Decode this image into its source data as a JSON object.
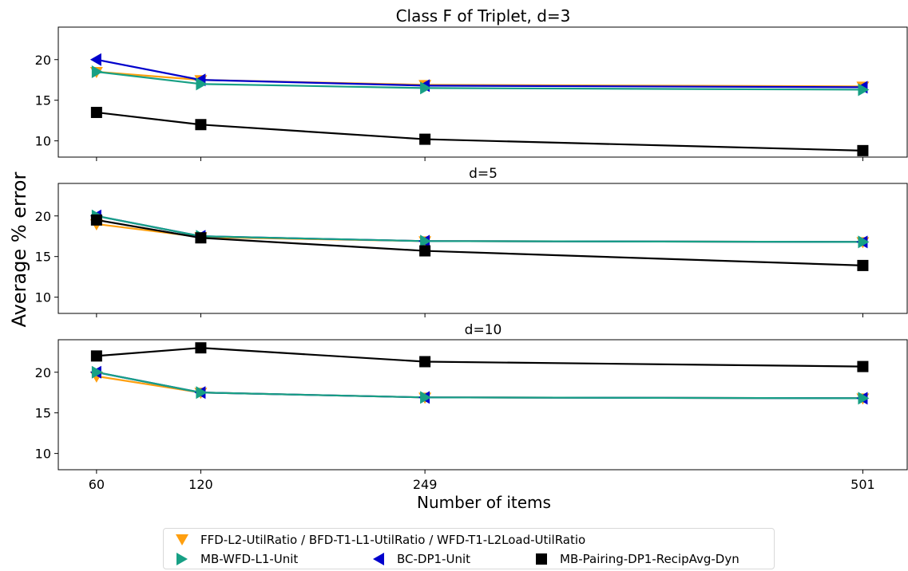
{
  "chart_data": {
    "type": "line",
    "shared_ylabel": "Average % error",
    "shared_xlabel": "Number of items",
    "x": [
      60,
      120,
      249,
      501
    ],
    "x_tick_labels": [
      "60",
      "120",
      "249",
      "501"
    ],
    "ylim": [
      8,
      24
    ],
    "y_ticks": [
      10,
      15,
      20
    ],
    "grid": false,
    "legend_position": "bottom-center, below plots",
    "legend": [
      {
        "label": "FFD-L2-UtilRatio / BFD-T1-L1-UtilRatio / WFD-T1-L2Load-UtilRatio",
        "marker": "triangle-down",
        "color": "#ff9f0f"
      },
      {
        "label": "MB-WFD-L1-Unit",
        "marker": "triangle-right",
        "color": "#17a085"
      },
      {
        "label": "BC-DP1-Unit",
        "marker": "triangle-left",
        "color": "#0000cc"
      },
      {
        "label": "MB-Pairing-DP1-RecipAvg-Dyn",
        "marker": "square",
        "color": "#000000"
      }
    ],
    "panels": [
      {
        "title": "Class F of Triplet, d=3",
        "series": [
          {
            "name": "FFD-L2-UtilRatio / BFD-T1-L1-UtilRatio / WFD-T1-L2Load-UtilRatio",
            "color": "#ff9f0f",
            "marker": "triangle-down",
            "values": [
              18.5,
              17.5,
              16.9,
              16.7
            ]
          },
          {
            "name": "BC-DP1-Unit",
            "color": "#0000cc",
            "marker": "triangle-left",
            "values": [
              20.0,
              17.5,
              16.8,
              16.6
            ]
          },
          {
            "name": "MB-WFD-L1-Unit",
            "color": "#17a085",
            "marker": "triangle-right",
            "values": [
              18.5,
              17.0,
              16.5,
              16.3
            ]
          },
          {
            "name": "MB-Pairing-DP1-RecipAvg-Dyn",
            "color": "#000000",
            "marker": "square",
            "values": [
              13.5,
              12.0,
              10.2,
              8.8
            ]
          }
        ]
      },
      {
        "title": "d=5",
        "series": [
          {
            "name": "FFD-L2-UtilRatio / BFD-T1-L1-UtilRatio / WFD-T1-L2Load-UtilRatio",
            "color": "#ff9f0f",
            "marker": "triangle-down",
            "values": [
              19.0,
              17.4,
              16.9,
              16.8
            ]
          },
          {
            "name": "BC-DP1-Unit",
            "color": "#0000cc",
            "marker": "triangle-left",
            "values": [
              20.0,
              17.5,
              16.9,
              16.8
            ]
          },
          {
            "name": "MB-WFD-L1-Unit",
            "color": "#17a085",
            "marker": "triangle-right",
            "values": [
              20.0,
              17.5,
              16.9,
              16.8
            ]
          },
          {
            "name": "MB-Pairing-DP1-RecipAvg-Dyn",
            "color": "#000000",
            "marker": "square",
            "values": [
              19.5,
              17.3,
              15.7,
              13.9
            ]
          }
        ]
      },
      {
        "title": "d=10",
        "series": [
          {
            "name": "FFD-L2-UtilRatio / BFD-T1-L1-UtilRatio / WFD-T1-L2Load-UtilRatio",
            "color": "#ff9f0f",
            "marker": "triangle-down",
            "values": [
              19.5,
              17.5,
              16.9,
              16.8
            ]
          },
          {
            "name": "BC-DP1-Unit",
            "color": "#0000cc",
            "marker": "triangle-left",
            "values": [
              20.0,
              17.5,
              16.9,
              16.8
            ]
          },
          {
            "name": "MB-WFD-L1-Unit",
            "color": "#17a085",
            "marker": "triangle-right",
            "values": [
              20.0,
              17.5,
              16.9,
              16.8
            ]
          },
          {
            "name": "MB-Pairing-DP1-RecipAvg-Dyn",
            "color": "#000000",
            "marker": "square",
            "values": [
              22.0,
              23.0,
              21.3,
              20.7
            ]
          }
        ]
      }
    ]
  }
}
